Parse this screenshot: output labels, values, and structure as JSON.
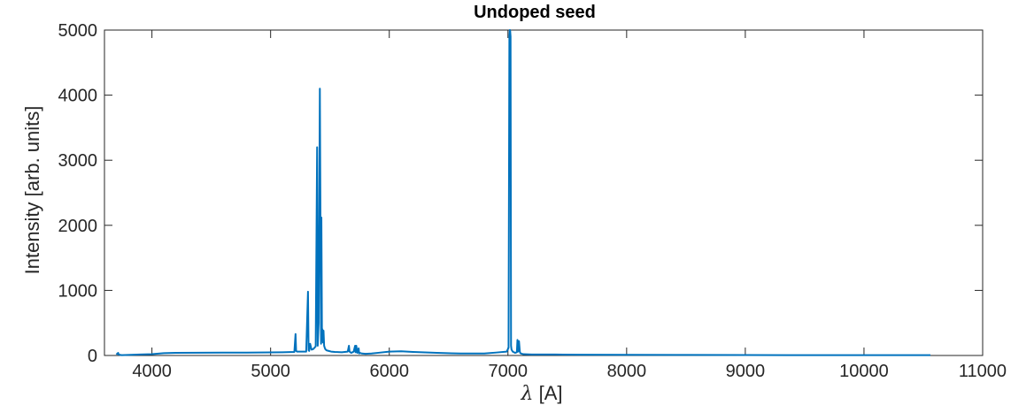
{
  "chart_data": {
    "type": "line",
    "title": "Undoped seed",
    "xlabel_symbol": "λ",
    "xlabel_unit": " [A]",
    "ylabel": "Intensity [arb. units]",
    "xlim": [
      3600,
      11000
    ],
    "ylim": [
      0,
      5000
    ],
    "xticks": [
      4000,
      5000,
      6000,
      7000,
      8000,
      9000,
      10000,
      11000
    ],
    "yticks": [
      0,
      1000,
      2000,
      3000,
      4000,
      5000
    ],
    "grid": false,
    "line_color": "#0072BD",
    "series": [
      {
        "x": [
          3700,
          3715,
          3720,
          3730,
          3745,
          3800,
          3900,
          4000,
          4100,
          4200,
          4400,
          4600,
          4800,
          5000,
          5100,
          5200,
          5210,
          5215,
          5222,
          5235,
          5300,
          5315,
          5320,
          5325,
          5333,
          5345,
          5360,
          5380,
          5392,
          5397,
          5405,
          5415,
          5425,
          5428,
          5433,
          5437,
          5441,
          5446,
          5451,
          5456,
          5460,
          5470,
          5490,
          5510,
          5540,
          5600,
          5650,
          5660,
          5665,
          5672,
          5680,
          5700,
          5712,
          5716,
          5722,
          5730,
          5742,
          5746,
          5752,
          5770,
          5800,
          5850,
          5900,
          6000,
          6100,
          6200,
          6400,
          6600,
          6800,
          6900,
          6990,
          7005,
          7012,
          7015,
          7018,
          7022,
          7026,
          7030,
          7040,
          7060,
          7075,
          7080,
          7085,
          7093,
          7100,
          7103,
          7110,
          7130,
          7200,
          7400,
          7600,
          8000,
          8500,
          9000,
          9500,
          10000,
          10300,
          10560
        ],
        "y": [
          15,
          40,
          15,
          10,
          5,
          8,
          15,
          20,
          35,
          40,
          42,
          45,
          45,
          48,
          50,
          55,
          330,
          70,
          60,
          60,
          60,
          980,
          80,
          70,
          180,
          90,
          100,
          140,
          3200,
          150,
          500,
          4100,
          180,
          2120,
          250,
          400,
          200,
          380,
          150,
          120,
          100,
          80,
          70,
          60,
          55,
          50,
          60,
          150,
          60,
          50,
          40,
          60,
          150,
          50,
          150,
          40,
          110,
          30,
          40,
          30,
          25,
          30,
          40,
          60,
          65,
          55,
          40,
          30,
          30,
          45,
          60,
          120,
          4900,
          5000,
          5000,
          4900,
          150,
          90,
          60,
          40,
          50,
          240,
          60,
          220,
          60,
          40,
          30,
          20,
          15,
          15,
          12,
          10,
          8,
          6,
          5,
          5,
          5,
          5
        ]
      }
    ]
  }
}
